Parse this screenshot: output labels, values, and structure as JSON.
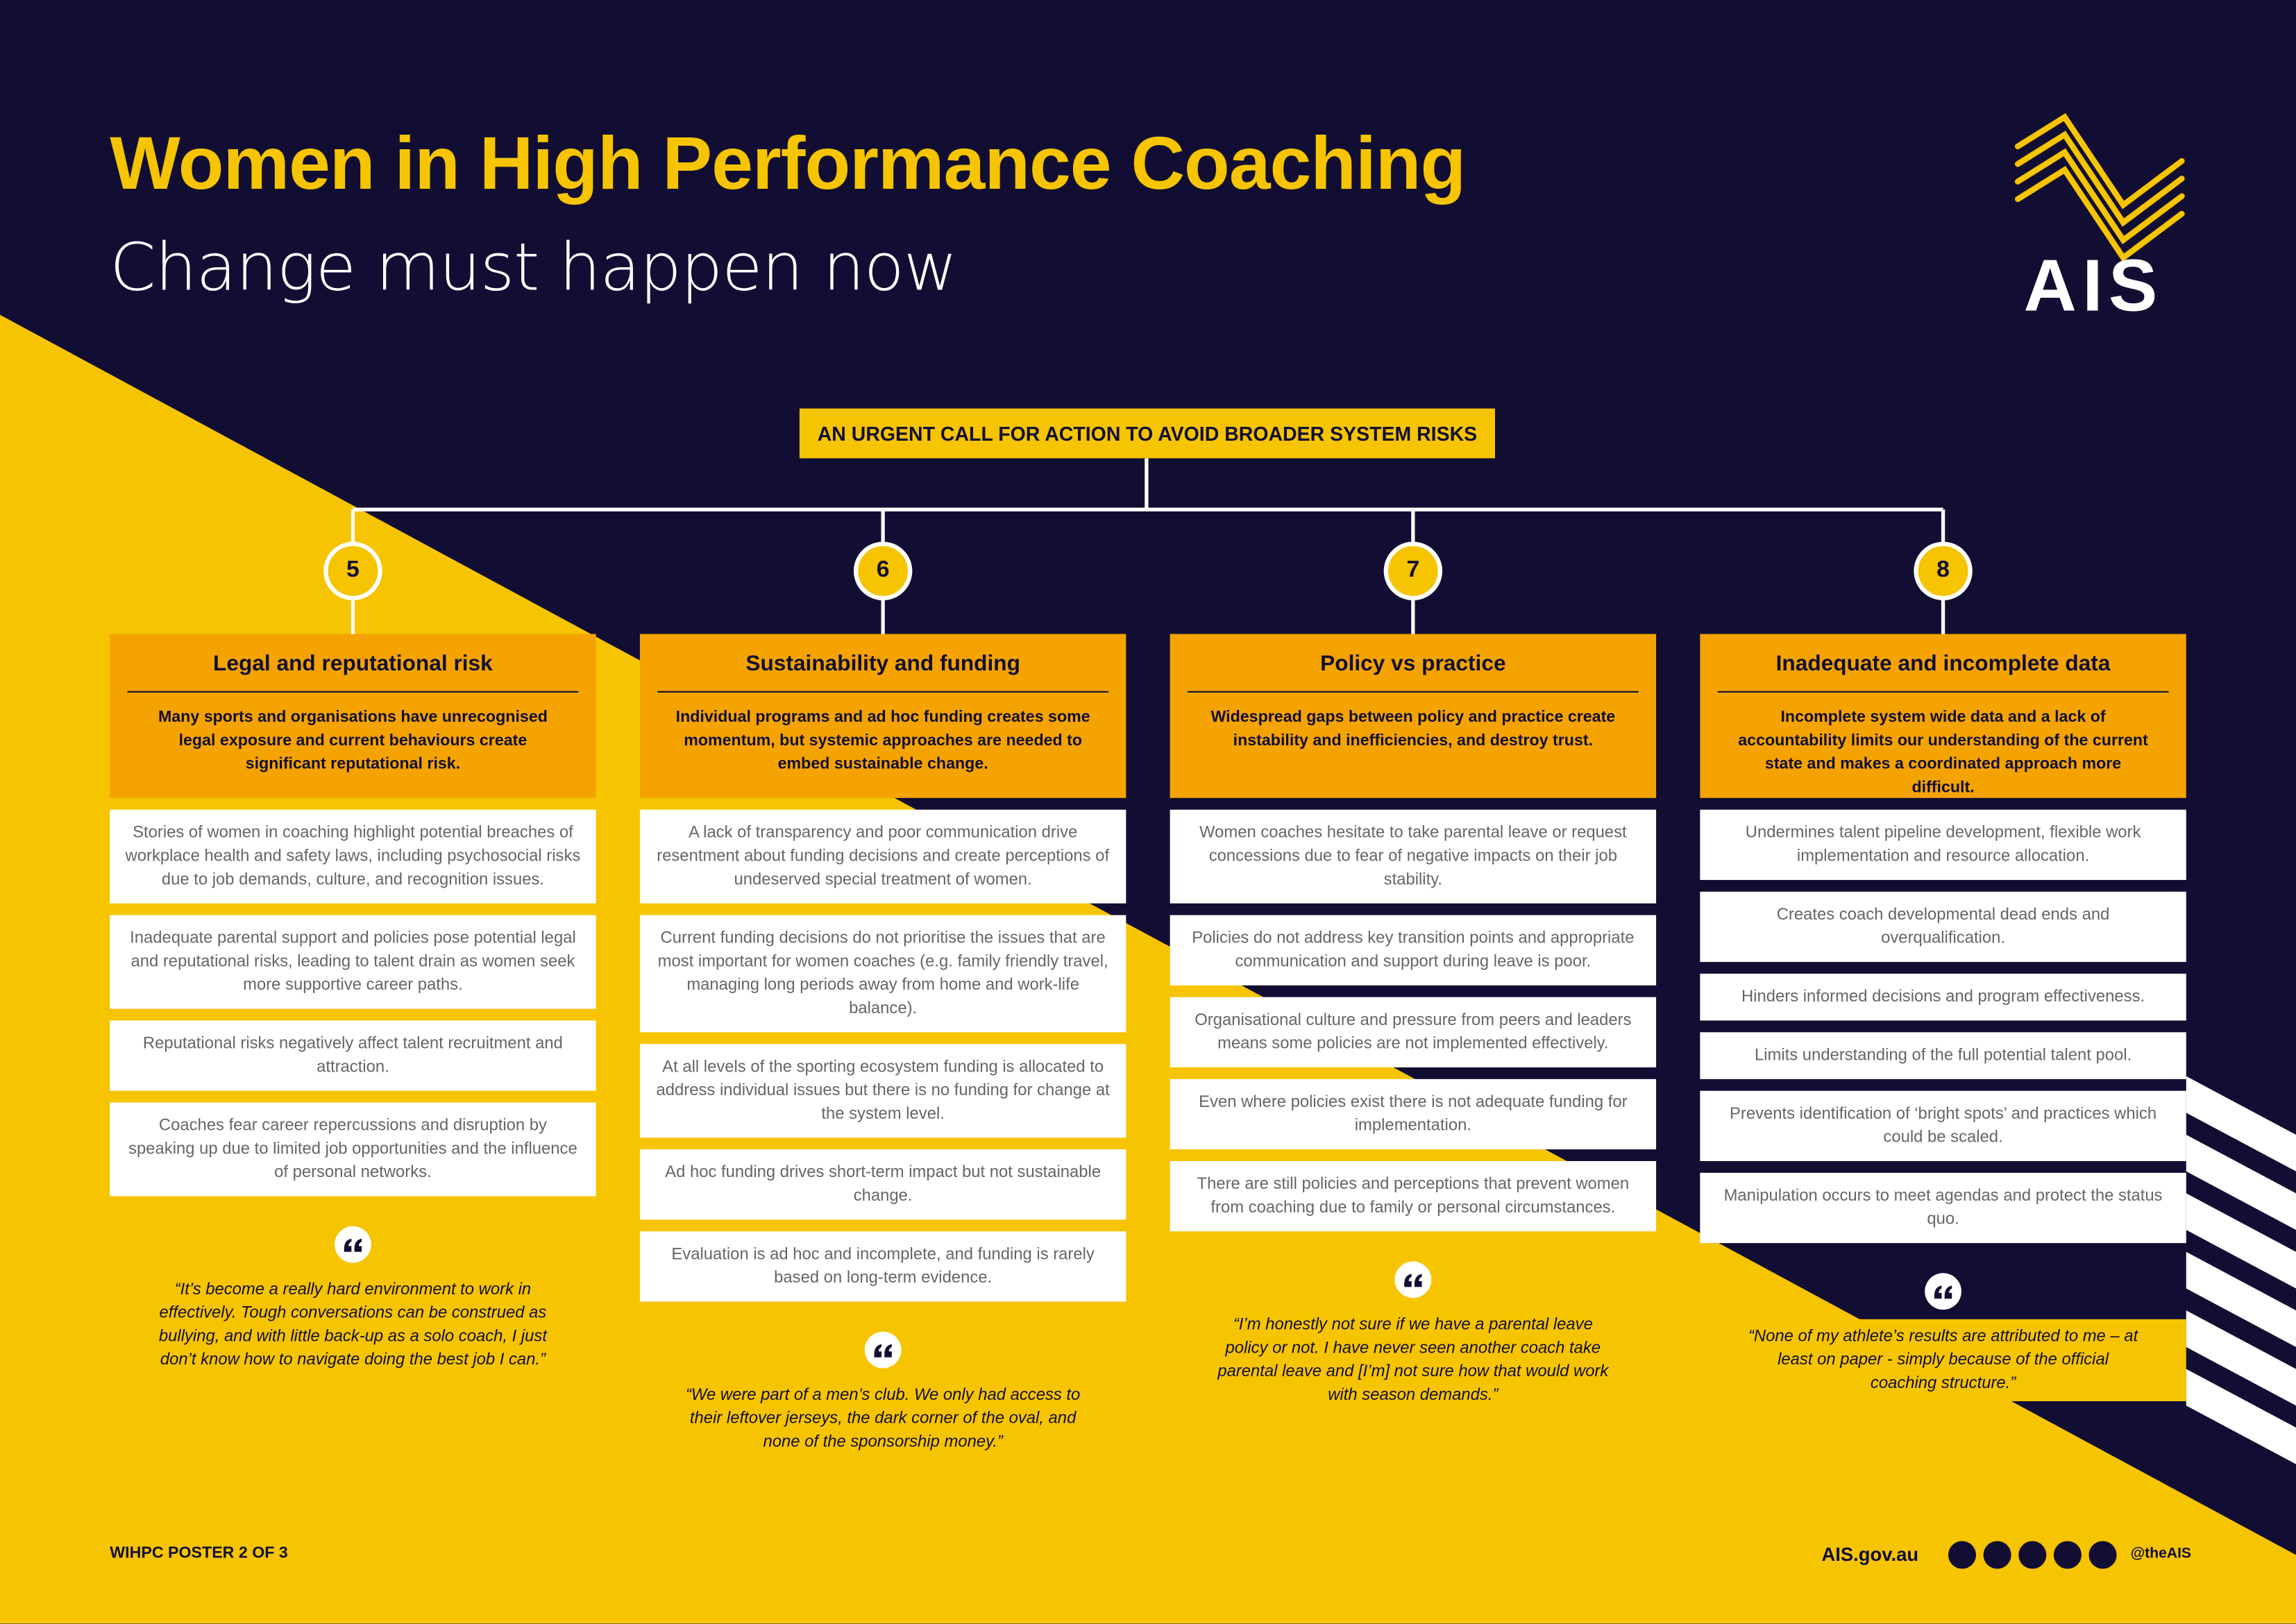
{
  "header": {
    "title": "Women in High Performance Coaching",
    "subtitle": "Change must happen now",
    "logo": "AIS"
  },
  "banner": "AN URGENT CALL FOR ACTION TO AVOID BROADER SYSTEM RISKS",
  "columns": [
    {
      "number": "5",
      "title": "Legal and reputational risk",
      "summary": "Many sports and organisations have unrecognised legal exposure and current behaviours create significant reputational risk.",
      "items": [
        "Stories of women in coaching highlight potential breaches of workplace health and safety laws, including psychosocial risks due to job demands, culture, and recognition issues.",
        "Inadequate parental support and policies pose potential legal and reputational risks, leading to talent drain as women seek more supportive career paths.",
        "Reputational risks negatively affect talent recruitment and attraction.",
        "Coaches fear career repercussions and disruption by speaking up due to limited job opportunities and the influence of personal networks."
      ],
      "quote": "“It’s become a really hard environment to work in effectively. Tough conversations can be construed as bullying, and with little back-up as a solo coach, I just don’t know how to navigate doing the best job I can.”"
    },
    {
      "number": "6",
      "title": "Sustainability and funding",
      "summary": "Individual programs and ad hoc funding creates some momentum, but systemic approaches are needed to embed sustainable change.",
      "items": [
        "A lack of transparency and poor communication drive resentment about funding decisions and create perceptions of undeserved special treatment of women.",
        "Current funding decisions do not prioritise the issues that are most important for women coaches (e.g. family friendly travel, managing long periods away from home and work-life balance).",
        "At all levels of the sporting ecosystem funding is allocated to address individual issues but there is no funding for change at the system level.",
        "Ad hoc funding drives short-term impact but not sustainable change.",
        "Evaluation is ad hoc and incomplete, and funding is rarely based on long-term evidence."
      ],
      "quote": "“We were part of a men’s club. We only had access to their leftover jerseys, the dark corner of the oval, and none of the sponsorship money.”"
    },
    {
      "number": "7",
      "title": "Policy vs practice",
      "summary": "Widespread gaps between policy and practice create instability and inefficiencies, and destroy trust.",
      "items": [
        "Women coaches hesitate to take parental leave or request concessions due to fear of negative impacts on their job stability.",
        "Policies do not address key transition points and appropriate communication and support during leave is poor.",
        "Organisational culture and pressure from peers and leaders means some policies are not implemented effectively.",
        "Even where policies exist there is not adequate funding for implementation.",
        "There are still policies and perceptions that prevent women from coaching due to family or personal circumstances."
      ],
      "quote": "“I’m honestly not sure if we have a parental leave policy or not. I have never seen another coach take parental leave and [I’m] not sure how that would work with season demands.”"
    },
    {
      "number": "8",
      "title": "Inadequate and incomplete data",
      "summary": "Incomplete system wide data and a lack of accountability limits our understanding of the current state and makes a coordinated approach more difficult.",
      "items": [
        "Undermines talent pipeline development, flexible work implementation and resource allocation.",
        "Creates coach developmental dead ends and overqualification.",
        "Hinders informed decisions and program effectiveness.",
        "Limits understanding of the full potential talent pool.",
        "Prevents identification of ‘bright spots’ and practices which could be scaled.",
        "Manipulation occurs to meet agendas and protect the status quo."
      ],
      "quote": "“None of my athlete’s results are attributed to me – at least on paper - simply because of the official coaching structure.”"
    }
  ],
  "footer": {
    "poster": "WIHPC POSTER 2 OF 3",
    "url": "AIS.gov.au",
    "handle": "@theAIS"
  }
}
